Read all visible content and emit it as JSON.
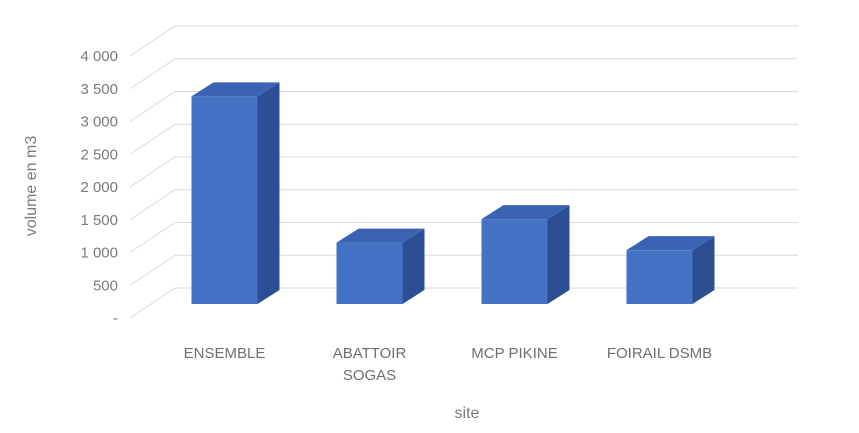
{
  "chart_data": {
    "type": "bar",
    "style": "3d-column",
    "categories": [
      "ENSEMBLE",
      "ABATTOIR SOGAS",
      "MCP PIKINE",
      "FOIRAIL DSMB"
    ],
    "category_lines": [
      [
        "ENSEMBLE"
      ],
      [
        "ABATTOIR",
        "SOGAS"
      ],
      [
        "MCP PIKINE"
      ],
      [
        "FOIRAIL DSMB"
      ]
    ],
    "values": [
      3550,
      1050,
      1450,
      920
    ],
    "xlabel": "site",
    "ylabel": "volume en m3",
    "ylim": [
      0,
      4000
    ],
    "yticks": [
      0,
      500,
      1000,
      1500,
      2000,
      2500,
      3000,
      3500,
      4000
    ],
    "ytick_labels": [
      "-",
      "500",
      "1 000",
      "1 500",
      "2 000",
      "2 500",
      "3 000",
      "3 500",
      "4 000"
    ],
    "grid": true,
    "legend": "none",
    "colors": {
      "bar_front": "#4472c4",
      "bar_side": "#2c4f94",
      "bar_top": "#3a63b3",
      "grid": "#d9d9d9",
      "text": "#7a7a7a"
    }
  }
}
